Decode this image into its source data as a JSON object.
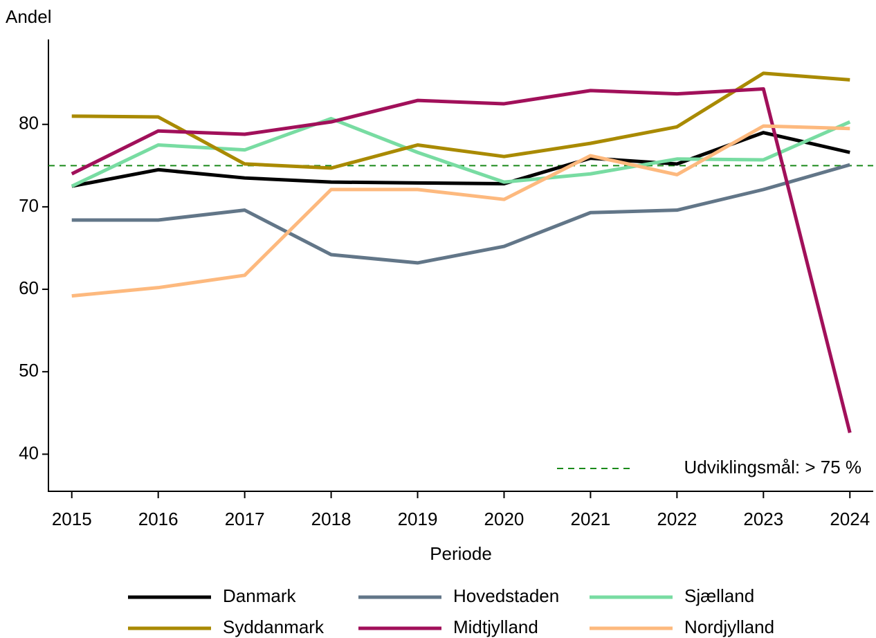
{
  "chart_data": {
    "type": "line",
    "y_label": "Andel",
    "x_label": "Periode",
    "x": [
      2015,
      2016,
      2017,
      2018,
      2019,
      2020,
      2021,
      2022,
      2023,
      2024
    ],
    "xlim": [
      2014.73,
      2024.27
    ],
    "xticks": [
      2015,
      2016,
      2017,
      2018,
      2019,
      2020,
      2021,
      2022,
      2023,
      2024
    ],
    "ylim": [
      35.5,
      90.3
    ],
    "yticks": [
      40,
      50,
      60,
      70,
      80
    ],
    "grid": false,
    "series": [
      {
        "name": "Danmark",
        "color": "#000000",
        "values": [
          72.5,
          74.5,
          73.5,
          73.0,
          72.9,
          72.8,
          75.9,
          75.2,
          79.0,
          76.6
        ]
      },
      {
        "name": "Hovedstaden",
        "color": "#627688",
        "values": [
          68.4,
          68.4,
          69.6,
          64.2,
          63.2,
          65.2,
          69.3,
          69.6,
          72.1,
          75.1
        ]
      },
      {
        "name": "Sjælland",
        "color": "#78dca2",
        "values": [
          72.5,
          77.5,
          76.9,
          80.7,
          76.6,
          73.0,
          74.0,
          75.8,
          75.7,
          80.3
        ]
      },
      {
        "name": "Syddanmark",
        "color": "#a98a00",
        "values": [
          81.0,
          80.9,
          75.2,
          74.7,
          77.5,
          76.1,
          77.7,
          79.7,
          86.2,
          85.4
        ]
      },
      {
        "name": "Midtjylland",
        "color": "#a1105a",
        "values": [
          74.0,
          79.2,
          78.8,
          80.3,
          82.9,
          82.5,
          84.1,
          83.7,
          84.3,
          42.6
        ]
      },
      {
        "name": "Nordjylland",
        "color": "#fdb97e",
        "values": [
          59.2,
          60.2,
          61.7,
          72.1,
          72.1,
          70.9,
          76.2,
          73.9,
          79.8,
          79.5
        ]
      }
    ],
    "reference_line": {
      "value": 75,
      "label": "Udviklingsmål: > 75 %",
      "color": "#1a8a1a"
    }
  }
}
